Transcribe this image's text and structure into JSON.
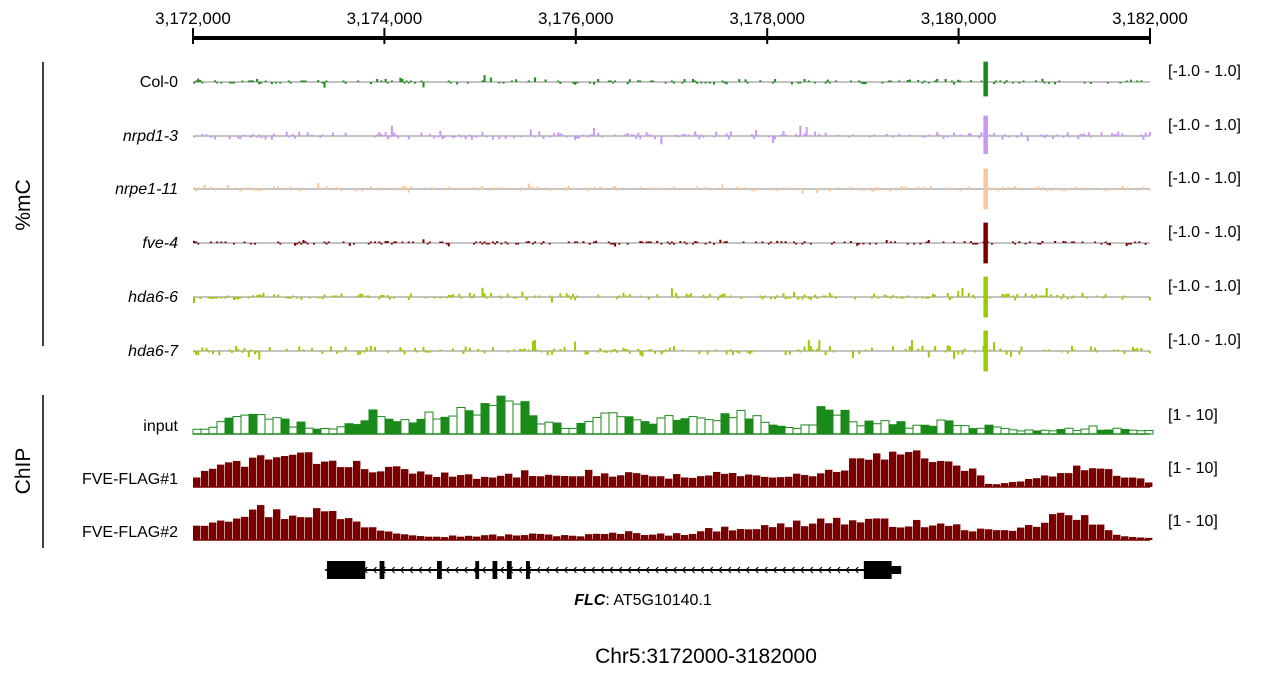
{
  "chart_data": {
    "type": "genome-browser-tracks",
    "region_label": "Chr5:3172000-3182000",
    "x_axis": {
      "range": [
        3172000,
        3182000
      ],
      "ticks": [
        3172000,
        3174000,
        3176000,
        3178000,
        3180000,
        3182000
      ],
      "tick_labels": [
        "3,172,000",
        "3,174,000",
        "3,176,000",
        "3,178,000",
        "3,180,000",
        "3,182,000"
      ]
    },
    "groups": [
      {
        "label": "%mC",
        "tracks": [
          {
            "name": "Col-0",
            "italic": false,
            "range": "[-1.0 - 1.0]",
            "color": "#1a8a1a",
            "peak_pos": 3180280,
            "peak": [
              0.85,
              -0.6
            ],
            "noise": 0.12,
            "seed": 11
          },
          {
            "name": "nrpd1-3",
            "italic": true,
            "range": "[-1.0 - 1.0]",
            "color": "#c899f0",
            "peak_pos": 3180280,
            "peak": [
              0.85,
              -0.75
            ],
            "noise": 0.18,
            "seed": 23
          },
          {
            "name": "nrpe1-11",
            "italic": true,
            "range": "[-1.0 - 1.0]",
            "color": "#f8c89c",
            "peak_pos": 3180280,
            "peak": [
              0.85,
              -0.85
            ],
            "noise": 0.12,
            "seed": 37
          },
          {
            "name": "fve-4",
            "italic": true,
            "range": "[-1.0 - 1.0]",
            "color": "#7a0000",
            "peak_pos": 3180280,
            "peak": [
              0.85,
              -0.85
            ],
            "noise": 0.08,
            "seed": 41
          },
          {
            "name": "hda6-6",
            "italic": true,
            "range": "[-1.0 - 1.0]",
            "color": "#99cc00",
            "peak_pos": 3180280,
            "peak": [
              0.85,
              -0.85
            ],
            "noise": 0.16,
            "seed": 53
          },
          {
            "name": "hda6-7",
            "italic": true,
            "range": "[-1.0 - 1.0]",
            "color": "#99cc00",
            "peak_pos": 3180280,
            "peak": [
              0.85,
              -0.85
            ],
            "noise": 0.2,
            "seed": 67
          }
        ]
      },
      {
        "label": "ChIP",
        "tracks": [
          {
            "name": "input",
            "range": "[1 - 10]",
            "color": "#1a8a1a",
            "style": "outline",
            "baseline": 0.08,
            "profile": [
              [
                3172000,
                0.15
              ],
              [
                3172200,
                0.15
              ],
              [
                3172400,
                0.45
              ],
              [
                3172700,
                0.6
              ],
              [
                3173000,
                0.2
              ],
              [
                3173400,
                0.15
              ],
              [
                3173700,
                0.35
              ],
              [
                3174000,
                0.45
              ],
              [
                3174400,
                0.35
              ],
              [
                3174700,
                0.45
              ],
              [
                3175000,
                0.7
              ],
              [
                3175300,
                0.75
              ],
              [
                3175600,
                0.35
              ],
              [
                3175900,
                0.15
              ],
              [
                3176200,
                0.6
              ],
              [
                3176400,
                0.4
              ],
              [
                3176800,
                0.35
              ],
              [
                3177200,
                0.4
              ],
              [
                3177500,
                0.5
              ],
              [
                3177800,
                0.5
              ],
              [
                3178000,
                0.2
              ],
              [
                3178300,
                0.15
              ],
              [
                3178600,
                0.55
              ],
              [
                3178900,
                0.25
              ],
              [
                3179200,
                0.35
              ],
              [
                3179500,
                0.15
              ],
              [
                3179800,
                0.35
              ],
              [
                3180000,
                0.15
              ],
              [
                3180300,
                0.2
              ],
              [
                3180500,
                0.1
              ],
              [
                3180900,
                0.1
              ],
              [
                3181200,
                0.1
              ],
              [
                3181500,
                0.15
              ],
              [
                3181800,
                0.1
              ],
              [
                3182000,
                0.1
              ]
            ],
            "seed": 71
          },
          {
            "name": "FVE-FLAG#1",
            "range": "[1 - 10]",
            "color": "#7a0000",
            "style": "fill",
            "baseline": 0.05,
            "profile": [
              [
                3172000,
                0.3
              ],
              [
                3172300,
                0.6
              ],
              [
                3172800,
                0.85
              ],
              [
                3173300,
                0.75
              ],
              [
                3173800,
                0.55
              ],
              [
                3174500,
                0.35
              ],
              [
                3175000,
                0.25
              ],
              [
                3175500,
                0.4
              ],
              [
                3176000,
                0.4
              ],
              [
                3176500,
                0.35
              ],
              [
                3177000,
                0.3
              ],
              [
                3177500,
                0.35
              ],
              [
                3178000,
                0.25
              ],
              [
                3178500,
                0.35
              ],
              [
                3179000,
                0.8
              ],
              [
                3179400,
                0.9
              ],
              [
                3179800,
                0.65
              ],
              [
                3180100,
                0.45
              ],
              [
                3180300,
                0.05
              ],
              [
                3180600,
                0.15
              ],
              [
                3181000,
                0.35
              ],
              [
                3181300,
                0.6
              ],
              [
                3181600,
                0.4
              ],
              [
                3182000,
                0.1
              ]
            ],
            "seed": 83
          },
          {
            "name": "FVE-FLAG#2",
            "range": "[1 - 10]",
            "color": "#7a0000",
            "style": "fill",
            "baseline": 0.05,
            "profile": [
              [
                3172000,
                0.45
              ],
              [
                3172300,
                0.65
              ],
              [
                3172600,
                0.85
              ],
              [
                3172900,
                0.7
              ],
              [
                3173300,
                0.8
              ],
              [
                3173600,
                0.55
              ],
              [
                3174000,
                0.25
              ],
              [
                3174500,
                0.1
              ],
              [
                3175000,
                0.12
              ],
              [
                3175500,
                0.15
              ],
              [
                3176000,
                0.12
              ],
              [
                3176500,
                0.2
              ],
              [
                3177000,
                0.15
              ],
              [
                3177600,
                0.35
              ],
              [
                3178000,
                0.35
              ],
              [
                3178500,
                0.55
              ],
              [
                3179000,
                0.5
              ],
              [
                3179500,
                0.45
              ],
              [
                3180000,
                0.35
              ],
              [
                3180400,
                0.2
              ],
              [
                3180700,
                0.35
              ],
              [
                3181000,
                0.7
              ],
              [
                3181300,
                0.55
              ],
              [
                3181600,
                0.15
              ],
              [
                3182000,
                0.05
              ]
            ],
            "seed": 97
          }
        ]
      }
    ],
    "gene": {
      "name": "FLC",
      "id": ": AT5G10140.1",
      "start": 3173400,
      "end": 3179400,
      "strand": "-",
      "exons": [
        [
          3173400,
          3173800
        ],
        [
          3173950,
          3174000
        ],
        [
          3174550,
          3174600
        ],
        [
          3174950,
          3174990
        ],
        [
          3175130,
          3175180
        ],
        [
          3175280,
          3175330
        ],
        [
          3175480,
          3175520
        ],
        [
          3179010,
          3179300
        ]
      ],
      "utr": [
        [
          3173400,
          3173550
        ],
        [
          3179300,
          3179400
        ]
      ]
    }
  }
}
